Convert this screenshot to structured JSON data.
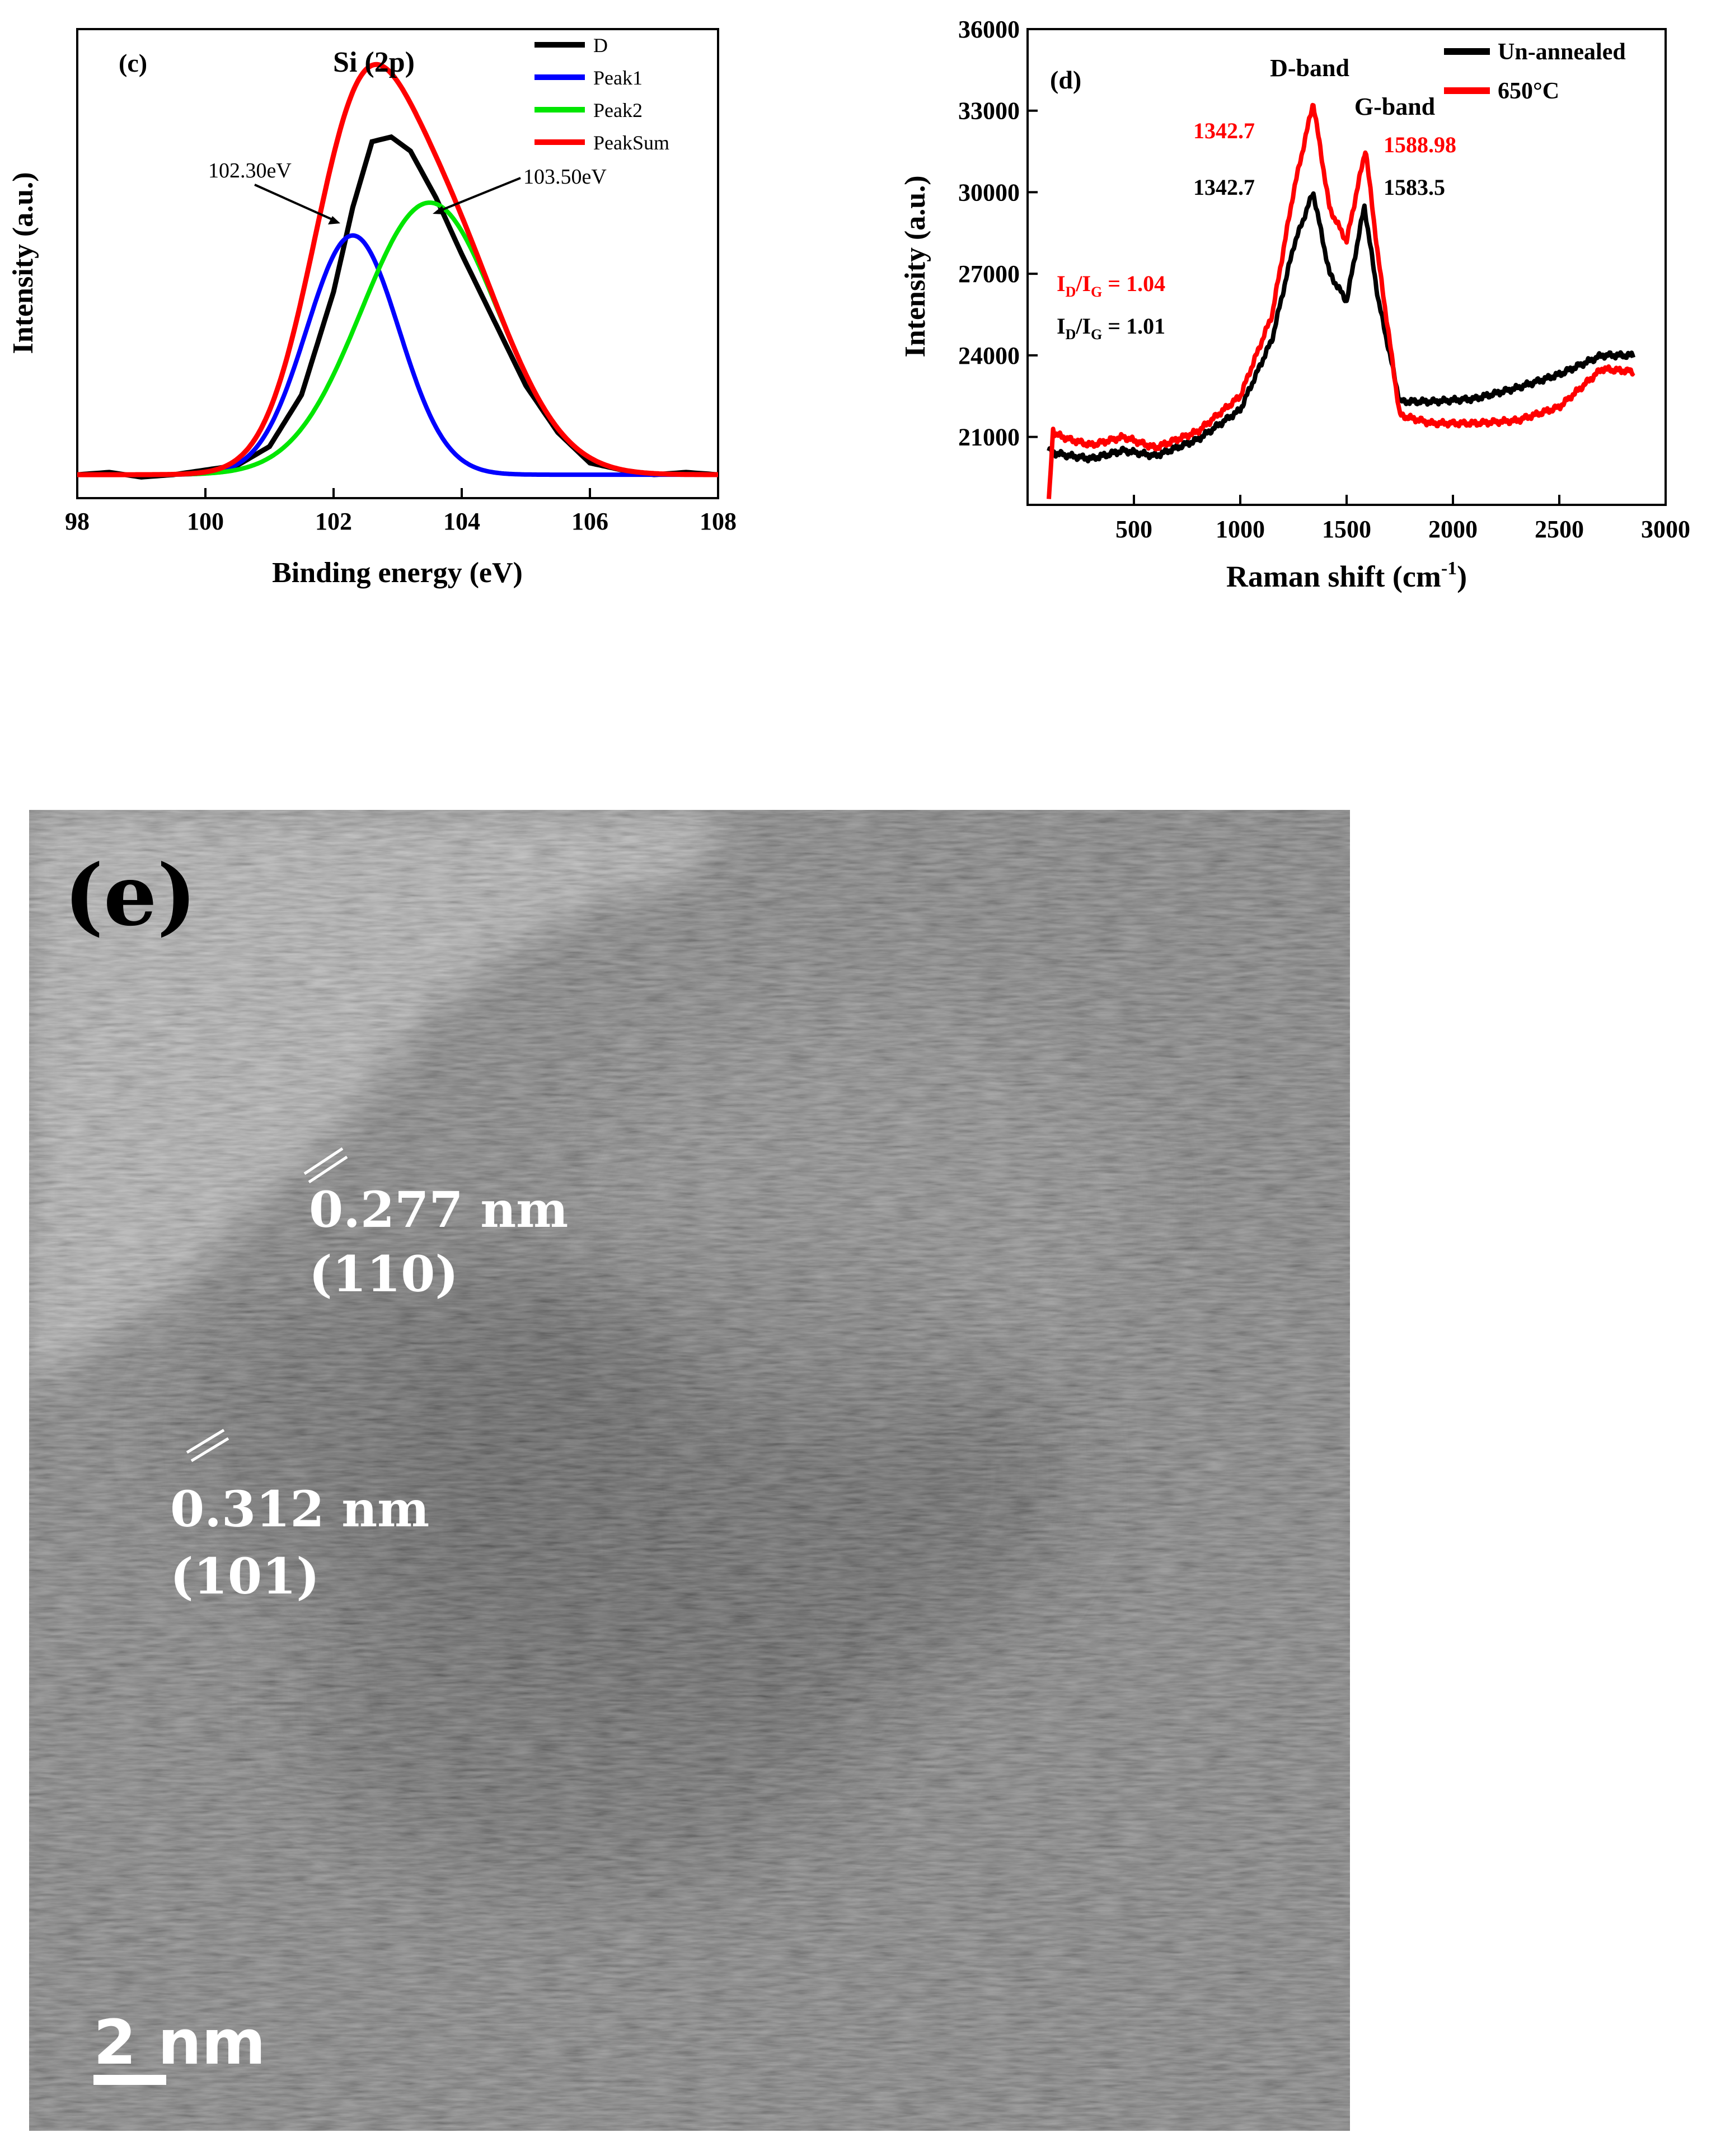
{
  "chart_data": [
    {
      "type": "line",
      "panel_label": "(c)",
      "title": "Si (2p)",
      "xlabel": "Binding energy (eV)",
      "ylabel": "Intensity (a.u.)",
      "xlim": [
        98,
        108
      ],
      "xticks": [
        "98",
        "100",
        "102",
        "104",
        "106",
        "108"
      ],
      "yticks_shown": false,
      "baseline": 0.05,
      "legend": {
        "placement": "top-right"
      },
      "series": [
        {
          "name": "D",
          "color": "#000000",
          "x": [
            98,
            98.5,
            99,
            99.5,
            100,
            100.5,
            101,
            101.5,
            102,
            102.3,
            102.6,
            102.9,
            103.2,
            103.6,
            104,
            104.5,
            105,
            105.5,
            106,
            106.5,
            107,
            107.5,
            108
          ],
          "y": [
            0.05,
            0.055,
            0.045,
            0.05,
            0.06,
            0.07,
            0.11,
            0.22,
            0.44,
            0.62,
            0.76,
            0.77,
            0.74,
            0.64,
            0.52,
            0.38,
            0.24,
            0.14,
            0.075,
            0.06,
            0.05,
            0.055,
            0.05
          ]
        },
        {
          "name": "Peak1",
          "color": "#0000ff",
          "center": 102.3,
          "height": 0.51,
          "fwhm": 1.7
        },
        {
          "name": "Peak2",
          "color": "#00e600",
          "center": 103.5,
          "height": 0.58,
          "fwhm": 2.5
        },
        {
          "name": "PeakSum",
          "color": "#ff0000",
          "of": [
            "Peak1",
            "Peak2"
          ]
        }
      ],
      "annotations": [
        {
          "text": "102.30eV",
          "x": 102.3
        },
        {
          "text": "103.50eV",
          "x": 103.5
        }
      ]
    },
    {
      "type": "line",
      "panel_label": "(d)",
      "xlabel": "Raman shift (cm",
      "xlabel_sup": "-1",
      "xlabel_end": ")",
      "ylabel": "Intensity (a.u.)",
      "xlim": [
        0,
        3000
      ],
      "ylim": [
        18500,
        36000
      ],
      "xticks": [
        500,
        1000,
        1500,
        2000,
        2500,
        3000
      ],
      "yticks": [
        21000,
        24000,
        27000,
        30000,
        33000,
        36000
      ],
      "legend": {
        "placement": "top-right"
      },
      "series": [
        {
          "name": "Un-annealed",
          "color": "#000000",
          "x": [
            100,
            130,
            200,
            300,
            450,
            600,
            800,
            1000,
            1150,
            1250,
            1342.7,
            1420,
            1500,
            1583.5,
            1650,
            1750,
            1900,
            2100,
            2300,
            2500,
            2700,
            2850
          ],
          "y": [
            20500,
            20400,
            20300,
            20200,
            20500,
            20300,
            20900,
            22000,
            24600,
            28000,
            30000,
            27000,
            26000,
            29500,
            26000,
            22300,
            22300,
            22400,
            22800,
            23300,
            24000,
            24000
          ]
        },
        {
          "name": "650°C",
          "color": "#ff0000",
          "x": [
            100,
            120,
            130,
            200,
            300,
            450,
            600,
            800,
            1000,
            1150,
            1250,
            1342.7,
            1420,
            1500,
            1588.98,
            1650,
            1750,
            1900,
            2100,
            2300,
            2500,
            2700,
            2850
          ],
          "y": [
            18600,
            21300,
            21100,
            20900,
            20700,
            21000,
            20600,
            21200,
            22500,
            25500,
            30000,
            33300,
            29400,
            28200,
            31600,
            27500,
            21800,
            21500,
            21500,
            21600,
            22100,
            23500,
            23400
          ]
        }
      ],
      "annotations": {
        "d_band": "D-band",
        "g_band": "G-band",
        "red_d": "1342.7",
        "red_g": "1588.98",
        "black_d": "1342.7",
        "black_g": "1583.5",
        "ratio_red": {
          "pre": "I",
          "sub1": "D",
          "mid": "/I",
          "sub2": "G",
          "post": " = 1.04"
        },
        "ratio_black": {
          "pre": "I",
          "sub1": "D",
          "mid": "/I",
          "sub2": "G",
          "post": " = 1.01"
        }
      }
    }
  ],
  "tem": {
    "panel_label": "(e)",
    "fringes": [
      {
        "spacing": "0.277 nm",
        "plane": "(110)"
      },
      {
        "spacing": "0.312 nm",
        "plane": "(101)"
      }
    ],
    "scalebar_label": "2 nm"
  },
  "colors": {
    "axis": "#000000",
    "red_text": "#ff0000",
    "tem_bg": "#7d7d7d"
  }
}
